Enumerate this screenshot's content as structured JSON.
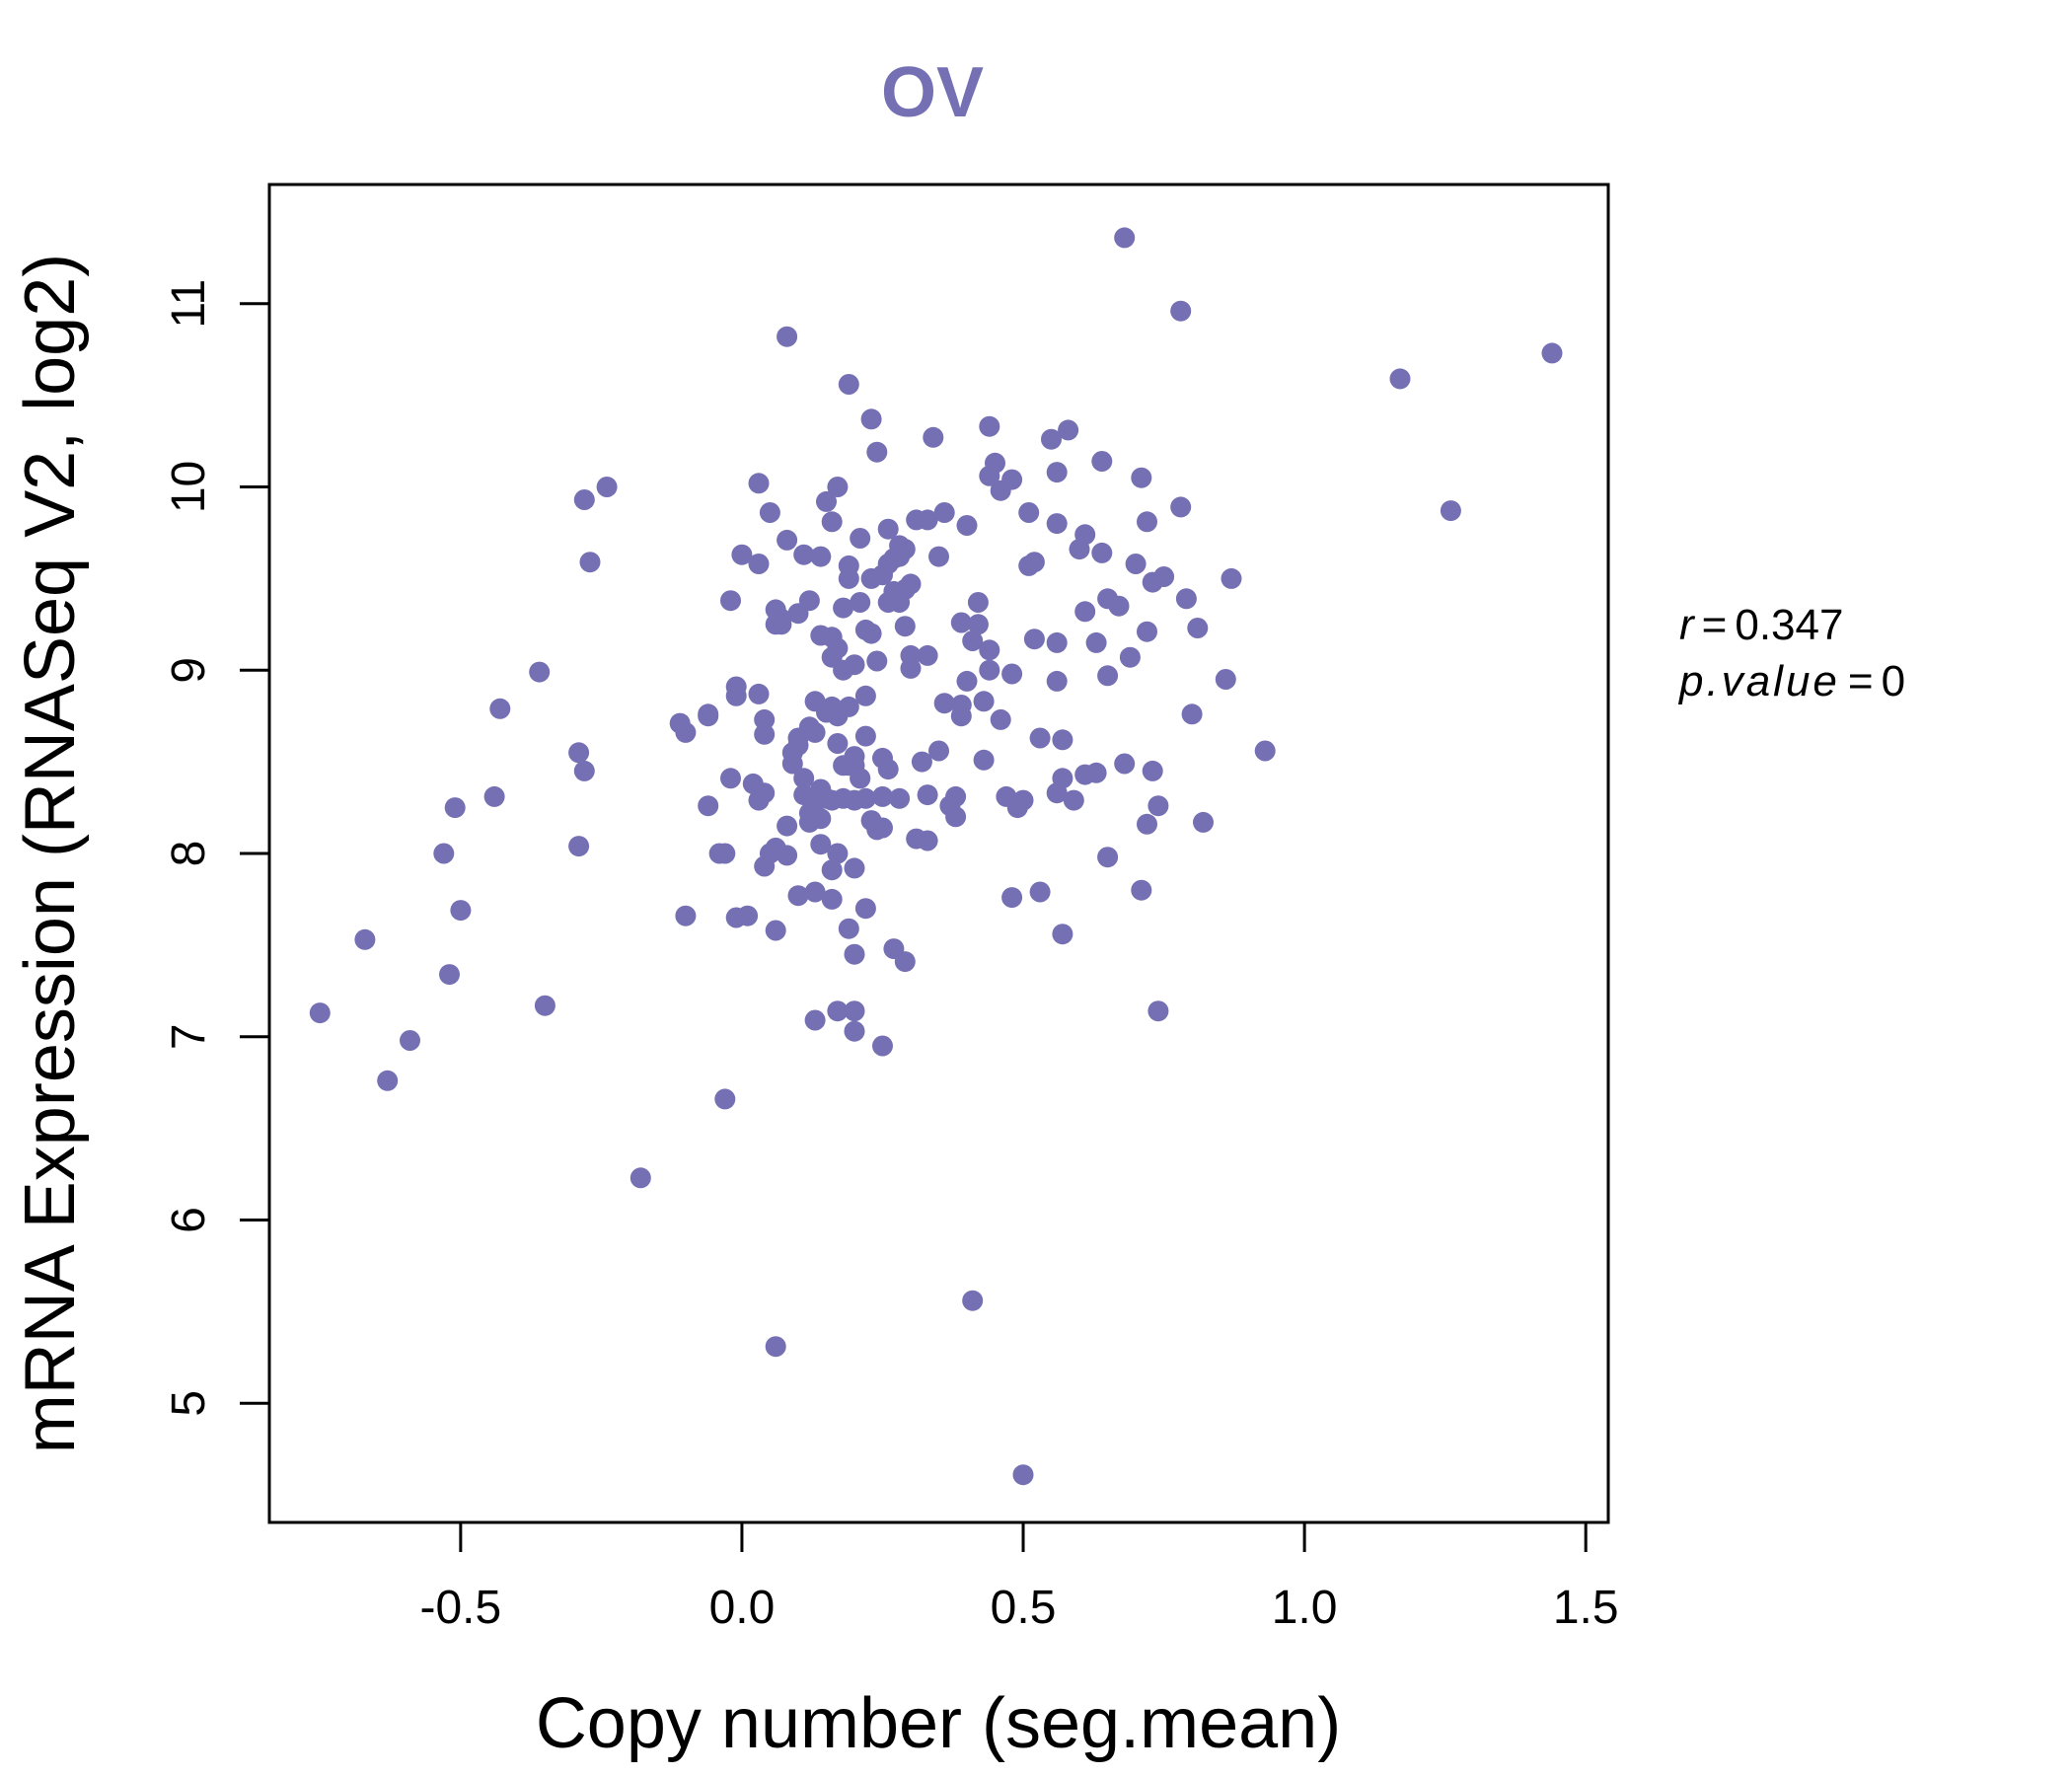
{
  "chart_data": {
    "type": "scatter",
    "title": "OV",
    "xlabel": "Copy number (seg.mean)",
    "ylabel": "mRNA Expression (RNASeq V2, log2)",
    "xlim": [
      -0.84,
      1.54
    ],
    "ylim": [
      4.35,
      11.65
    ],
    "xticks": [
      -0.5,
      0.0,
      0.5,
      1.0,
      1.5
    ],
    "xtick_labels": [
      "-0.5",
      "0.0",
      "0.5",
      "1.0",
      "1.5"
    ],
    "yticks": [
      5,
      6,
      7,
      8,
      9,
      10,
      11
    ],
    "ytick_labels": [
      "5",
      "6",
      "7",
      "8",
      "9",
      "10",
      "11"
    ],
    "point_color": "#7570b3",
    "stats": {
      "r_label": "r",
      "r_value": "0.347",
      "p_label": "p.value",
      "p_value": "0"
    },
    "points": [
      [
        -0.75,
        7.13
      ],
      [
        -0.67,
        7.53
      ],
      [
        -0.63,
        6.76
      ],
      [
        -0.59,
        6.98
      ],
      [
        -0.53,
        8.0
      ],
      [
        -0.52,
        7.34
      ],
      [
        -0.51,
        8.25
      ],
      [
        -0.5,
        7.69
      ],
      [
        -0.44,
        8.31
      ],
      [
        -0.43,
        8.79
      ],
      [
        -0.36,
        8.99
      ],
      [
        -0.35,
        7.17
      ],
      [
        -0.29,
        8.55
      ],
      [
        -0.29,
        8.04
      ],
      [
        -0.28,
        8.45
      ],
      [
        -0.28,
        9.93
      ],
      [
        -0.27,
        9.59
      ],
      [
        -0.24,
        10.0
      ],
      [
        -0.18,
        6.23
      ],
      [
        -0.11,
        8.71
      ],
      [
        -0.1,
        8.66
      ],
      [
        -0.1,
        7.66
      ],
      [
        -0.06,
        8.76
      ],
      [
        -0.06,
        8.26
      ],
      [
        -0.06,
        8.75
      ],
      [
        -0.04,
        8.0
      ],
      [
        -0.03,
        8.0
      ],
      [
        -0.03,
        6.66
      ],
      [
        -0.02,
        9.38
      ],
      [
        -0.02,
        8.41
      ],
      [
        -0.01,
        8.91
      ],
      [
        -0.01,
        8.86
      ],
      [
        -0.01,
        7.65
      ],
      [
        0.0,
        9.63
      ],
      [
        0.01,
        7.66
      ],
      [
        0.02,
        8.38
      ],
      [
        0.03,
        10.02
      ],
      [
        0.03,
        9.58
      ],
      [
        0.03,
        8.87
      ],
      [
        0.03,
        8.29
      ],
      [
        0.04,
        8.73
      ],
      [
        0.04,
        8.65
      ],
      [
        0.04,
        7.93
      ],
      [
        0.04,
        8.33
      ],
      [
        0.05,
        9.86
      ],
      [
        0.05,
        8.0
      ],
      [
        0.06,
        8.03
      ],
      [
        0.06,
        9.33
      ],
      [
        0.06,
        9.25
      ],
      [
        0.06,
        7.58
      ],
      [
        0.06,
        5.31
      ],
      [
        0.07,
        9.28
      ],
      [
        0.07,
        9.25
      ],
      [
        0.08,
        9.71
      ],
      [
        0.08,
        10.82
      ],
      [
        0.08,
        8.15
      ],
      [
        0.08,
        7.99
      ],
      [
        0.09,
        8.55
      ],
      [
        0.09,
        8.49
      ],
      [
        0.1,
        9.31
      ],
      [
        0.1,
        8.63
      ],
      [
        0.1,
        8.59
      ],
      [
        0.1,
        7.77
      ],
      [
        0.11,
        9.63
      ],
      [
        0.11,
        8.41
      ],
      [
        0.11,
        8.32
      ],
      [
        0.12,
        8.69
      ],
      [
        0.12,
        8.22
      ],
      [
        0.12,
        8.17
      ],
      [
        0.12,
        9.38
      ],
      [
        0.13,
        8.83
      ],
      [
        0.13,
        8.66
      ],
      [
        0.13,
        8.28
      ],
      [
        0.13,
        7.79
      ],
      [
        0.13,
        7.09
      ],
      [
        0.14,
        9.62
      ],
      [
        0.14,
        9.19
      ],
      [
        0.14,
        8.35
      ],
      [
        0.14,
        8.19
      ],
      [
        0.14,
        8.05
      ],
      [
        0.14,
        8.31
      ],
      [
        0.15,
        9.92
      ],
      [
        0.15,
        8.3
      ],
      [
        0.15,
        8.77
      ],
      [
        0.16,
        9.18
      ],
      [
        0.16,
        9.07
      ],
      [
        0.16,
        8.8
      ],
      [
        0.16,
        8.29
      ],
      [
        0.16,
        7.91
      ],
      [
        0.16,
        7.75
      ],
      [
        0.16,
        9.81
      ],
      [
        0.17,
        10.0
      ],
      [
        0.17,
        9.12
      ],
      [
        0.17,
        8.75
      ],
      [
        0.17,
        8.6
      ],
      [
        0.17,
        8.0
      ],
      [
        0.17,
        7.14
      ],
      [
        0.18,
        9.34
      ],
      [
        0.18,
        9.0
      ],
      [
        0.18,
        8.48
      ],
      [
        0.18,
        8.3
      ],
      [
        0.19,
        9.57
      ],
      [
        0.19,
        9.5
      ],
      [
        0.19,
        8.8
      ],
      [
        0.19,
        8.48
      ],
      [
        0.19,
        7.59
      ],
      [
        0.19,
        10.56
      ],
      [
        0.2,
        9.03
      ],
      [
        0.2,
        8.53
      ],
      [
        0.2,
        8.29
      ],
      [
        0.2,
        8.48
      ],
      [
        0.2,
        7.45
      ],
      [
        0.2,
        7.92
      ],
      [
        0.2,
        7.14
      ],
      [
        0.2,
        7.03
      ],
      [
        0.21,
        9.72
      ],
      [
        0.21,
        9.37
      ],
      [
        0.21,
        8.41
      ],
      [
        0.21,
        8.41
      ],
      [
        0.22,
        9.22
      ],
      [
        0.22,
        8.86
      ],
      [
        0.22,
        8.64
      ],
      [
        0.22,
        8.3
      ],
      [
        0.22,
        7.7
      ],
      [
        0.23,
        10.37
      ],
      [
        0.23,
        9.5
      ],
      [
        0.23,
        9.2
      ],
      [
        0.23,
        8.18
      ],
      [
        0.24,
        10.19
      ],
      [
        0.24,
        9.05
      ],
      [
        0.24,
        8.13
      ],
      [
        0.25,
        9.52
      ],
      [
        0.25,
        8.52
      ],
      [
        0.25,
        8.31
      ],
      [
        0.25,
        8.14
      ],
      [
        0.25,
        6.95
      ],
      [
        0.26,
        9.77
      ],
      [
        0.26,
        9.37
      ],
      [
        0.26,
        9.58
      ],
      [
        0.26,
        8.46
      ],
      [
        0.27,
        9.61
      ],
      [
        0.27,
        9.43
      ],
      [
        0.27,
        7.48
      ],
      [
        0.28,
        9.68
      ],
      [
        0.28,
        9.37
      ],
      [
        0.28,
        8.3
      ],
      [
        0.28,
        9.62
      ],
      [
        0.29,
        9.66
      ],
      [
        0.29,
        9.44
      ],
      [
        0.29,
        9.24
      ],
      [
        0.29,
        7.41
      ],
      [
        0.3,
        9.47
      ],
      [
        0.3,
        9.08
      ],
      [
        0.3,
        9.01
      ],
      [
        0.31,
        9.82
      ],
      [
        0.31,
        8.08
      ],
      [
        0.32,
        8.5
      ],
      [
        0.33,
        9.82
      ],
      [
        0.33,
        9.08
      ],
      [
        0.33,
        8.32
      ],
      [
        0.33,
        8.07
      ],
      [
        0.34,
        10.27
      ],
      [
        0.35,
        9.62
      ],
      [
        0.35,
        8.56
      ],
      [
        0.36,
        9.86
      ],
      [
        0.36,
        8.82
      ],
      [
        0.37,
        8.26
      ],
      [
        0.38,
        8.2
      ],
      [
        0.38,
        8.31
      ],
      [
        0.39,
        9.26
      ],
      [
        0.39,
        8.81
      ],
      [
        0.39,
        8.75
      ],
      [
        0.4,
        9.79
      ],
      [
        0.4,
        8.94
      ],
      [
        0.41,
        9.16
      ],
      [
        0.41,
        5.56
      ],
      [
        0.42,
        9.37
      ],
      [
        0.42,
        9.25
      ],
      [
        0.43,
        8.83
      ],
      [
        0.43,
        8.51
      ],
      [
        0.44,
        10.33
      ],
      [
        0.44,
        10.06
      ],
      [
        0.44,
        9.11
      ],
      [
        0.44,
        9.0
      ],
      [
        0.45,
        10.13
      ],
      [
        0.46,
        9.98
      ],
      [
        0.46,
        8.73
      ],
      [
        0.47,
        8.31
      ],
      [
        0.48,
        10.04
      ],
      [
        0.48,
        7.76
      ],
      [
        0.48,
        8.98
      ],
      [
        0.49,
        8.25
      ],
      [
        0.5,
        8.29
      ],
      [
        0.5,
        4.61
      ],
      [
        0.51,
        9.57
      ],
      [
        0.51,
        9.86
      ],
      [
        0.52,
        9.59
      ],
      [
        0.52,
        9.17
      ],
      [
        0.53,
        8.63
      ],
      [
        0.53,
        7.79
      ],
      [
        0.55,
        10.26
      ],
      [
        0.56,
        9.8
      ],
      [
        0.56,
        10.08
      ],
      [
        0.56,
        9.15
      ],
      [
        0.56,
        8.94
      ],
      [
        0.56,
        8.33
      ],
      [
        0.57,
        8.62
      ],
      [
        0.57,
        8.41
      ],
      [
        0.57,
        7.56
      ],
      [
        0.58,
        10.31
      ],
      [
        0.59,
        8.29
      ],
      [
        0.6,
        9.66
      ],
      [
        0.61,
        9.32
      ],
      [
        0.61,
        9.74
      ],
      [
        0.61,
        8.43
      ],
      [
        0.63,
        9.15
      ],
      [
        0.63,
        8.44
      ],
      [
        0.64,
        10.14
      ],
      [
        0.64,
        9.64
      ],
      [
        0.65,
        9.39
      ],
      [
        0.65,
        8.97
      ],
      [
        0.65,
        7.98
      ],
      [
        0.67,
        9.35
      ],
      [
        0.68,
        8.49
      ],
      [
        0.68,
        11.36
      ],
      [
        0.69,
        9.07
      ],
      [
        0.7,
        9.58
      ],
      [
        0.71,
        10.05
      ],
      [
        0.71,
        7.8
      ],
      [
        0.72,
        9.81
      ],
      [
        0.72,
        9.21
      ],
      [
        0.72,
        8.16
      ],
      [
        0.73,
        9.48
      ],
      [
        0.73,
        8.45
      ],
      [
        0.74,
        8.26
      ],
      [
        0.74,
        7.14
      ],
      [
        0.75,
        9.51
      ],
      [
        0.78,
        10.96
      ],
      [
        0.78,
        9.89
      ],
      [
        0.79,
        9.39
      ],
      [
        0.8,
        8.76
      ],
      [
        0.81,
        9.23
      ],
      [
        0.82,
        8.17
      ],
      [
        0.86,
        8.95
      ],
      [
        0.87,
        9.5
      ],
      [
        0.93,
        8.56
      ],
      [
        1.17,
        10.59
      ],
      [
        1.26,
        9.87
      ],
      [
        1.44,
        10.73
      ]
    ]
  }
}
